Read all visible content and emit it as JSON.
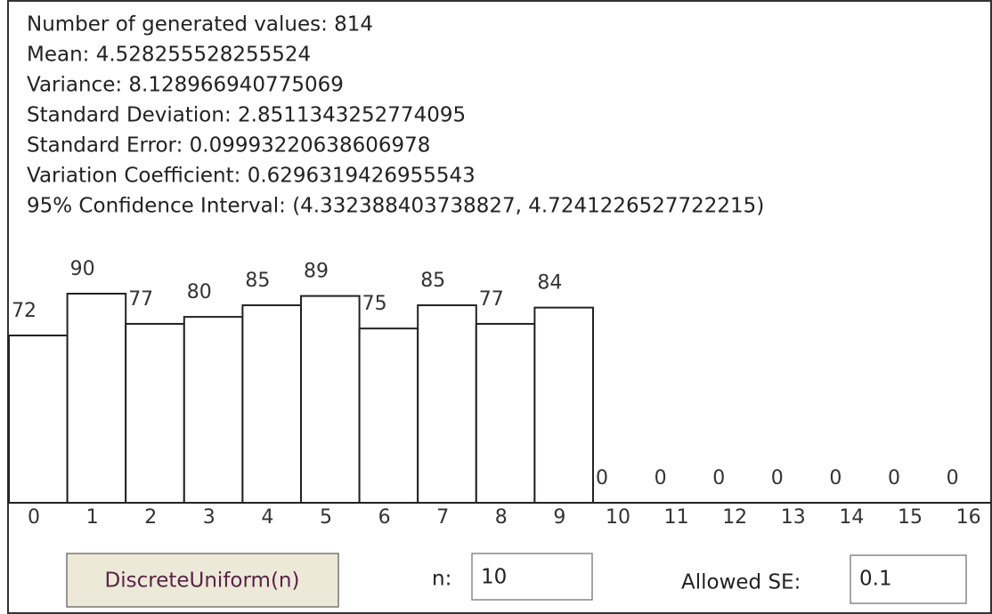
{
  "stats": [
    "Number of generated values: 814",
    "Mean: 4.528255528255524",
    "Variance: 8.128966940775069",
    "Standard Deviation: 2.8511343252774095",
    "Standard Error: 0.09993220638606978",
    "Variation Coefficient: 0.6296319426955543",
    "95% Confidence Interval: (4.332388403738827, 4.7241226527722215)"
  ],
  "chart_data": {
    "type": "bar",
    "categories": [
      "0",
      "1",
      "2",
      "3",
      "4",
      "5",
      "6",
      "7",
      "8",
      "9",
      "10",
      "11",
      "12",
      "13",
      "14",
      "15",
      "16"
    ],
    "values": [
      72,
      90,
      77,
      80,
      85,
      89,
      75,
      85,
      77,
      84,
      0,
      0,
      0,
      0,
      0,
      0,
      0
    ],
    "color": "#ffffff"
  },
  "controls": {
    "button": "DiscreteUniform(n)",
    "n_label": "n:",
    "n_value": "10",
    "se_label": "Allowed SE:",
    "se_value": "0.1"
  }
}
